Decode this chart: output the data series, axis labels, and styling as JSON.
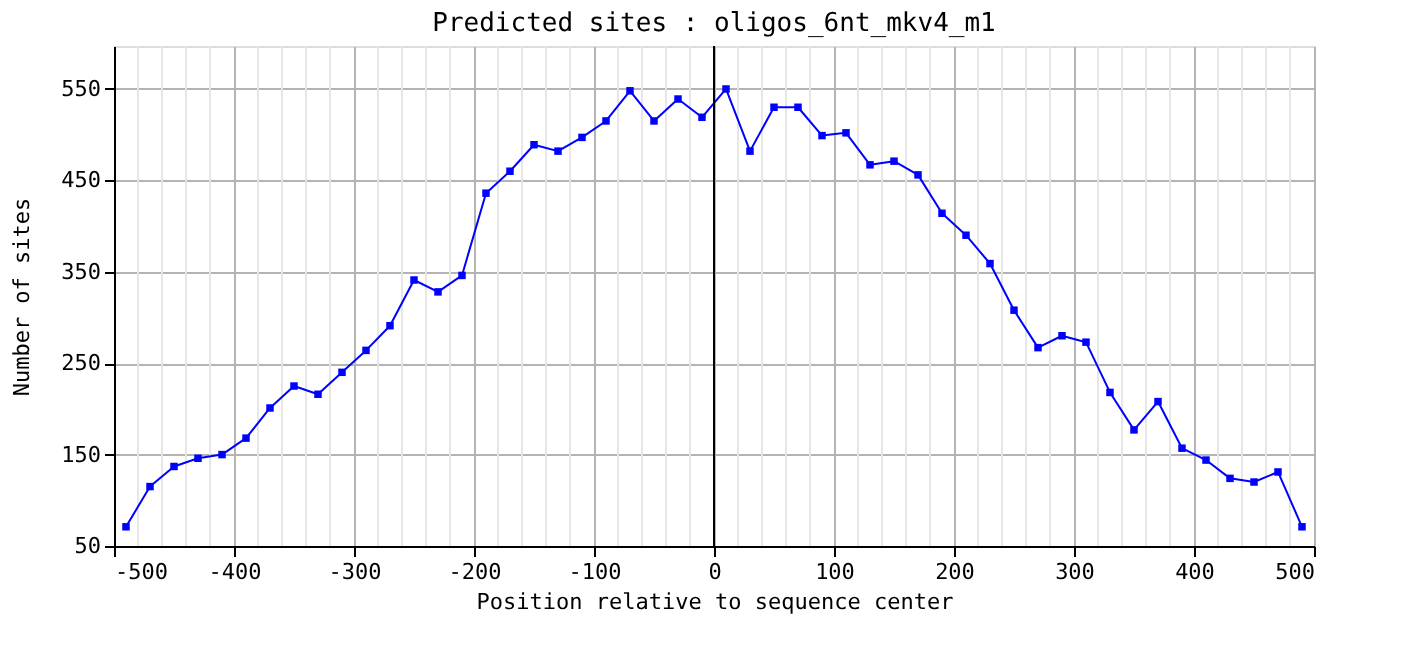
{
  "chart_data": {
    "type": "line",
    "title": "Predicted sites : oligos_6nt_mkv4_m1",
    "xlabel": "Position relative to sequence center",
    "ylabel": "Number of sites",
    "x": [
      -490,
      -470,
      -450,
      -430,
      -410,
      -390,
      -370,
      -350,
      -330,
      -310,
      -290,
      -270,
      -250,
      -230,
      -210,
      -190,
      -170,
      -150,
      -130,
      -110,
      -90,
      -70,
      -50,
      -30,
      -10,
      10,
      30,
      50,
      70,
      90,
      110,
      130,
      150,
      170,
      190,
      210,
      230,
      250,
      270,
      290,
      310,
      330,
      350,
      370,
      390,
      410,
      430,
      450,
      470,
      490
    ],
    "series": [
      {
        "color": "#0000ff",
        "values": [
          71,
          115,
          137,
          146,
          150,
          168,
          201,
          225,
          216,
          240,
          264,
          291,
          341,
          328,
          346,
          436,
          460,
          489,
          482,
          497,
          515,
          548,
          515,
          539,
          519,
          550,
          482,
          530,
          530,
          499,
          502,
          467,
          471,
          456,
          414,
          390,
          359,
          308,
          267,
          280,
          273,
          218,
          177,
          208,
          157,
          144,
          124,
          120,
          131,
          71
        ]
      }
    ],
    "xlim": [
      -500,
      500
    ],
    "ylim": [
      50,
      597
    ],
    "xticks": [
      -500,
      {
        "value": -480,
        "label": null
      },
      {
        "value": -460,
        "label": null
      },
      {
        "value": -440,
        "label": null
      },
      {
        "value": -420,
        "label": null
      },
      -400,
      {
        "value": -380,
        "label": null
      },
      {
        "value": -360,
        "label": null
      },
      {
        "value": -340,
        "label": null
      },
      {
        "value": -320,
        "label": null
      },
      -300,
      {
        "value": -280,
        "label": null
      },
      {
        "value": -260,
        "label": null
      },
      {
        "value": -240,
        "label": null
      },
      {
        "value": -220,
        "label": null
      },
      -200,
      {
        "value": -180,
        "label": null
      },
      {
        "value": -160,
        "label": null
      },
      {
        "value": -140,
        "label": null
      },
      {
        "value": -120,
        "label": null
      },
      -100,
      {
        "value": -80,
        "label": null
      },
      {
        "value": -60,
        "label": null
      },
      {
        "value": -40,
        "label": null
      },
      {
        "value": -20,
        "label": null
      },
      0,
      {
        "value": 20,
        "label": null
      },
      {
        "value": 40,
        "label": null
      },
      {
        "value": 60,
        "label": null
      },
      {
        "value": 80,
        "label": null
      },
      100,
      {
        "value": 120,
        "label": null
      },
      {
        "value": 140,
        "label": null
      },
      {
        "value": 160,
        "label": null
      },
      {
        "value": 180,
        "label": null
      },
      200,
      {
        "value": 220,
        "label": null
      },
      {
        "value": 240,
        "label": null
      },
      {
        "value": 260,
        "label": null
      },
      {
        "value": 280,
        "label": null
      },
      300,
      {
        "value": 320,
        "label": null
      },
      {
        "value": 340,
        "label": null
      },
      {
        "value": 360,
        "label": null
      },
      {
        "value": 380,
        "label": null
      },
      400,
      {
        "value": 420,
        "label": null
      },
      {
        "value": 440,
        "label": null
      },
      {
        "value": 460,
        "label": null
      },
      {
        "value": 480,
        "label": null
      },
      500
    ],
    "yticks": [
      50,
      150,
      250,
      350,
      450,
      550
    ],
    "ref_lines": [
      {
        "axis": "x",
        "value": 0,
        "color": "#000000"
      }
    ],
    "grid": true,
    "marker": "square",
    "line_style": "solid"
  }
}
